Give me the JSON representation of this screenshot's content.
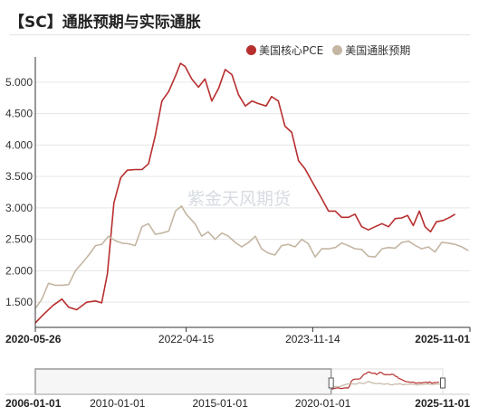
{
  "title": "【SC】通胀预期与实际通胀",
  "watermark": "紫金天风期货",
  "colors": {
    "pce": "#b82e2e",
    "expect": "#c4b6a3",
    "axis": "#333333",
    "grid": "#e6e6e6"
  },
  "chart_data": {
    "type": "line",
    "x_start": "2020-05-26",
    "x_end": "2025-11-01",
    "x_ticks": [
      "2020-05-26",
      "2022-04-15",
      "2023-11-14",
      "2025-11-01"
    ],
    "ylim": [
      1.1,
      5.4
    ],
    "y_ticks": [
      "1.500",
      "2.000",
      "2.500",
      "3.000",
      "3.500",
      "4.000",
      "4.500",
      "5.000"
    ],
    "legend_position": "top-right",
    "series": [
      {
        "name": "美国核心PCE",
        "color": "#b82e2e",
        "points": [
          [
            "2020-05-26",
            1.17
          ],
          [
            "2020-07-01",
            1.3
          ],
          [
            "2020-08-15",
            1.45
          ],
          [
            "2020-09-25",
            1.55
          ],
          [
            "2020-10-25",
            1.42
          ],
          [
            "2020-12-01",
            1.38
          ],
          [
            "2021-01-15",
            1.5
          ],
          [
            "2021-02-25",
            1.52
          ],
          [
            "2021-03-25",
            1.49
          ],
          [
            "2021-04-20",
            1.95
          ],
          [
            "2021-05-20",
            3.08
          ],
          [
            "2021-06-20",
            3.48
          ],
          [
            "2021-07-20",
            3.6
          ],
          [
            "2021-08-25",
            3.61
          ],
          [
            "2021-09-25",
            3.61
          ],
          [
            "2021-10-25",
            3.7
          ],
          [
            "2021-11-25",
            4.15
          ],
          [
            "2021-12-25",
            4.7
          ],
          [
            "2022-01-25",
            4.85
          ],
          [
            "2022-02-25",
            5.1
          ],
          [
            "2022-03-20",
            5.3
          ],
          [
            "2022-04-10",
            5.25
          ],
          [
            "2022-05-10",
            5.05
          ],
          [
            "2022-06-10",
            4.92
          ],
          [
            "2022-07-10",
            5.05
          ],
          [
            "2022-08-10",
            4.7
          ],
          [
            "2022-09-10",
            4.9
          ],
          [
            "2022-10-10",
            5.2
          ],
          [
            "2022-11-10",
            5.12
          ],
          [
            "2022-12-10",
            4.8
          ],
          [
            "2023-01-10",
            4.62
          ],
          [
            "2023-02-10",
            4.7
          ],
          [
            "2023-03-10",
            4.66
          ],
          [
            "2023-04-15",
            4.62
          ],
          [
            "2023-05-10",
            4.77
          ],
          [
            "2023-06-10",
            4.7
          ],
          [
            "2023-07-10",
            4.3
          ],
          [
            "2023-08-10",
            4.2
          ],
          [
            "2023-09-10",
            3.75
          ],
          [
            "2023-10-10",
            3.62
          ],
          [
            "2023-11-14",
            3.4
          ],
          [
            "2023-12-20",
            3.18
          ],
          [
            "2024-01-25",
            2.95
          ],
          [
            "2024-02-25",
            2.95
          ],
          [
            "2024-03-25",
            2.85
          ],
          [
            "2024-04-25",
            2.85
          ],
          [
            "2024-05-25",
            2.9
          ],
          [
            "2024-06-25",
            2.7
          ],
          [
            "2024-07-25",
            2.65
          ],
          [
            "2024-08-25",
            2.7
          ],
          [
            "2024-09-25",
            2.75
          ],
          [
            "2024-10-25",
            2.7
          ],
          [
            "2024-11-25",
            2.83
          ],
          [
            "2024-12-25",
            2.84
          ],
          [
            "2025-01-20",
            2.88
          ],
          [
            "2025-02-15",
            2.72
          ],
          [
            "2025-03-15",
            2.95
          ],
          [
            "2025-04-10",
            2.7
          ],
          [
            "2025-05-05",
            2.62
          ],
          [
            "2025-06-01",
            2.78
          ],
          [
            "2025-07-01",
            2.8
          ],
          [
            "2025-08-01",
            2.85
          ],
          [
            "2025-08-25",
            2.9
          ]
        ]
      },
      {
        "name": "美国通胀预期",
        "color": "#c4b6a3",
        "points": [
          [
            "2020-05-26",
            1.4
          ],
          [
            "2020-06-25",
            1.55
          ],
          [
            "2020-07-25",
            1.8
          ],
          [
            "2020-08-25",
            1.77
          ],
          [
            "2020-09-25",
            1.77
          ],
          [
            "2020-10-25",
            1.78
          ],
          [
            "2020-11-25",
            2.0
          ],
          [
            "2020-12-25",
            2.12
          ],
          [
            "2021-01-25",
            2.25
          ],
          [
            "2021-02-25",
            2.4
          ],
          [
            "2021-03-25",
            2.42
          ],
          [
            "2021-04-25",
            2.55
          ],
          [
            "2021-05-25",
            2.48
          ],
          [
            "2021-06-25",
            2.44
          ],
          [
            "2021-07-25",
            2.43
          ],
          [
            "2021-08-25",
            2.4
          ],
          [
            "2021-09-25",
            2.7
          ],
          [
            "2021-10-25",
            2.75
          ],
          [
            "2021-11-25",
            2.58
          ],
          [
            "2021-12-25",
            2.6
          ],
          [
            "2022-01-25",
            2.63
          ],
          [
            "2022-02-25",
            2.95
          ],
          [
            "2022-03-25",
            3.03
          ],
          [
            "2022-04-15",
            2.9
          ],
          [
            "2022-05-25",
            2.75
          ],
          [
            "2022-06-25",
            2.55
          ],
          [
            "2022-07-25",
            2.62
          ],
          [
            "2022-08-25",
            2.5
          ],
          [
            "2022-09-25",
            2.6
          ],
          [
            "2022-10-25",
            2.55
          ],
          [
            "2022-11-25",
            2.45
          ],
          [
            "2022-12-25",
            2.38
          ],
          [
            "2023-01-25",
            2.45
          ],
          [
            "2023-02-25",
            2.55
          ],
          [
            "2023-03-25",
            2.35
          ],
          [
            "2023-04-25",
            2.28
          ],
          [
            "2023-05-25",
            2.25
          ],
          [
            "2023-06-25",
            2.4
          ],
          [
            "2023-07-25",
            2.42
          ],
          [
            "2023-08-25",
            2.38
          ],
          [
            "2023-09-25",
            2.5
          ],
          [
            "2023-10-25",
            2.43
          ],
          [
            "2023-11-25",
            2.22
          ],
          [
            "2023-12-25",
            2.35
          ],
          [
            "2024-01-25",
            2.35
          ],
          [
            "2024-02-25",
            2.37
          ],
          [
            "2024-03-25",
            2.44
          ],
          [
            "2024-04-25",
            2.4
          ],
          [
            "2024-05-25",
            2.35
          ],
          [
            "2024-06-25",
            2.34
          ],
          [
            "2024-07-25",
            2.23
          ],
          [
            "2024-08-25",
            2.22
          ],
          [
            "2024-09-25",
            2.35
          ],
          [
            "2024-10-25",
            2.37
          ],
          [
            "2024-11-25",
            2.36
          ],
          [
            "2024-12-25",
            2.45
          ],
          [
            "2025-01-25",
            2.47
          ],
          [
            "2025-02-25",
            2.4
          ],
          [
            "2025-03-25",
            2.35
          ],
          [
            "2025-04-25",
            2.38
          ],
          [
            "2025-05-25",
            2.3
          ],
          [
            "2025-06-25",
            2.45
          ],
          [
            "2025-07-25",
            2.44
          ],
          [
            "2025-08-25",
            2.42
          ],
          [
            "2025-09-25",
            2.38
          ],
          [
            "2025-10-25",
            2.32
          ]
        ]
      }
    ],
    "navigator": {
      "range_start": "2006-01-01",
      "range_end": "2025-11-01",
      "window_start": "2020-05-26",
      "window_end": "2025-11-01",
      "labels": [
        "2006-01-01",
        "2010-01-01",
        "2015-01-01",
        "2020-01-01",
        "2025-11-01"
      ]
    }
  }
}
